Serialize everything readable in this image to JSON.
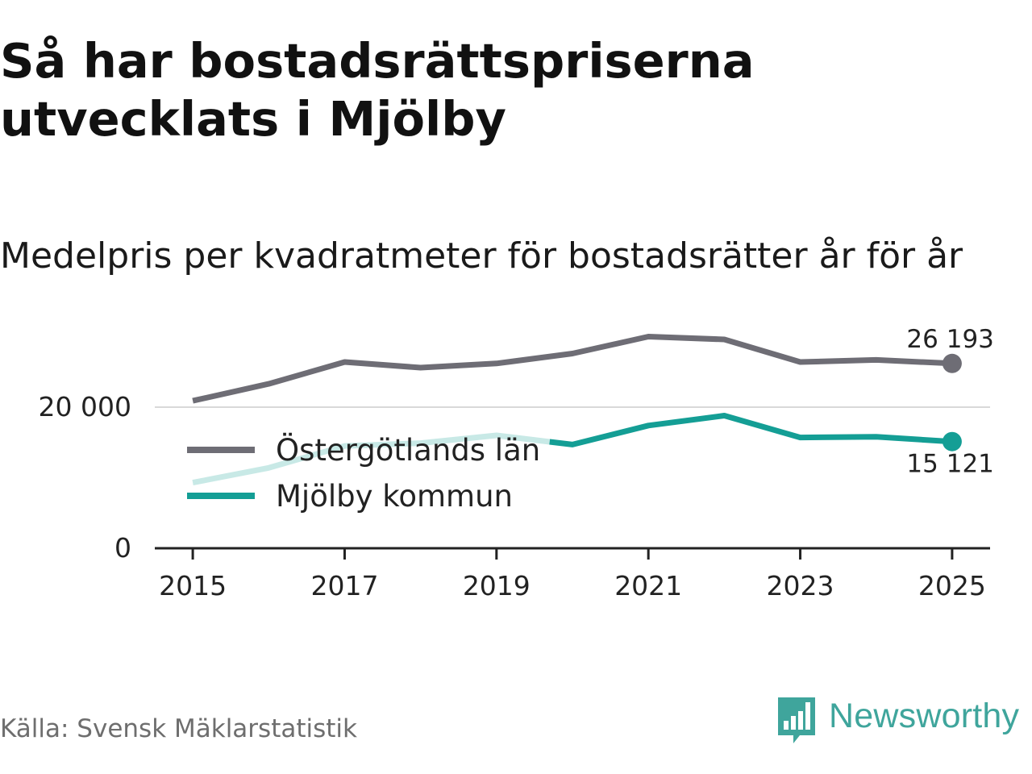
{
  "title": "Så har bostadsrättspriserna utvecklats i Mjölby",
  "subtitle": "Medelpris per kvadratmeter för bostadsrätter år för år",
  "source": "Källa: Svensk Mäklarstatistik",
  "brand": {
    "name": "Newsworthy",
    "icon": "newsworthy-logo-icon",
    "color": "#3fa59c"
  },
  "colors": {
    "lan": "#6e6d75",
    "kommun": "#149e95",
    "kommun_faded": "#c8e9e6",
    "axis": "#222222",
    "grid": "#d9d9d9",
    "text": "#222222"
  },
  "chart_data": {
    "type": "line",
    "title": "Medelpris per kvadratmeter för bostadsrätter år för år",
    "xlabel": "",
    "ylabel": "",
    "x": [
      2015,
      2016,
      2017,
      2018,
      2019,
      2020,
      2021,
      2022,
      2023,
      2024,
      2025
    ],
    "xlim": [
      2014.5,
      2025.5
    ],
    "ylim": [
      0,
      32000
    ],
    "x_ticks": [
      "2015",
      "2017",
      "2019",
      "2021",
      "2023",
      "2025"
    ],
    "x_tick_values": [
      2015,
      2017,
      2019,
      2021,
      2023,
      2025
    ],
    "y_ticks": [
      "0",
      "20 000"
    ],
    "y_tick_values": [
      0,
      20000
    ],
    "grid": true,
    "legend_position": "left, inside plot",
    "series": [
      {
        "name": "Östergötlands län",
        "values": [
          20900,
          23300,
          26400,
          25600,
          26200,
          27600,
          30000,
          29600,
          26400,
          26700,
          26193
        ],
        "end_label": "26 193"
      },
      {
        "name": "Mjölby kommun",
        "values": [
          9300,
          11400,
          14500,
          14900,
          16000,
          14700,
          17400,
          18800,
          15700,
          15800,
          15121
        ],
        "end_label": "15 121",
        "faded_until": 2019.7
      }
    ]
  }
}
